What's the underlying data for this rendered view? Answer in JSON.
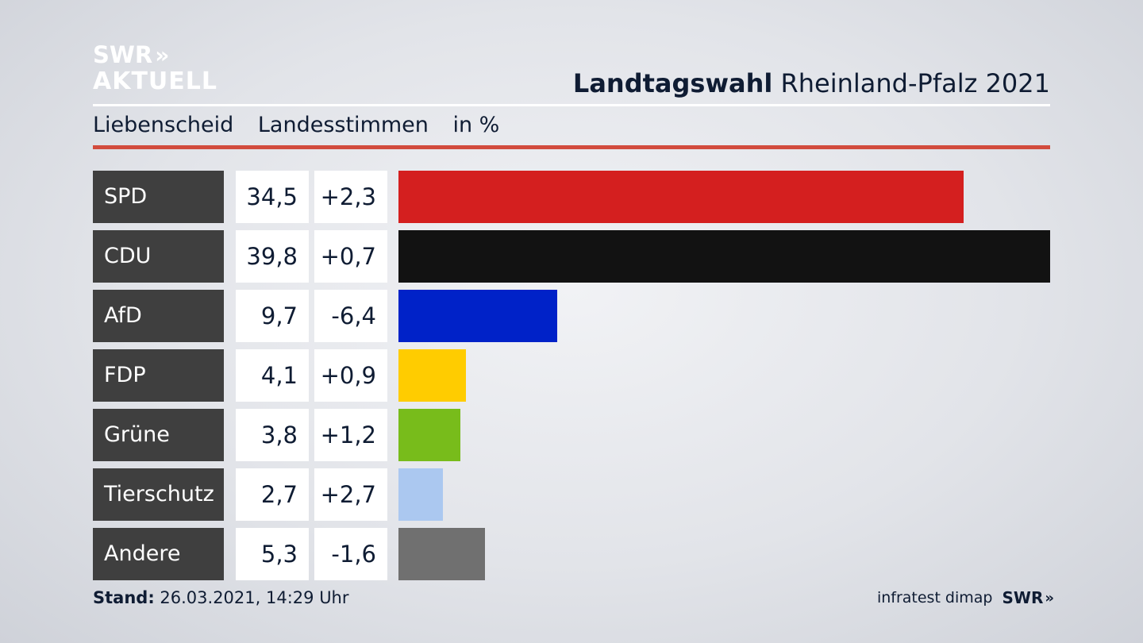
{
  "logo": {
    "line1": "SWR",
    "line2": "AKTUELL",
    "chevrons": "»"
  },
  "header": {
    "title_bold": "Landtagswahl",
    "title_rest": "Rheinland-Pfalz 2021",
    "sub_location": "Liebenscheid",
    "sub_type": "Landesstimmen",
    "sub_unit": "in %"
  },
  "colors": {
    "SPD": "#d41f1f",
    "CDU": "#121212",
    "AfD": "#0022c8",
    "FDP": "#ffcc00",
    "Grüne": "#78bc1b",
    "Tierschutz": "#abc8f0",
    "Andere": "#707070",
    "accent_red": "#d24b3d"
  },
  "chart_data": {
    "type": "bar",
    "orientation": "horizontal",
    "categories": [
      "SPD",
      "CDU",
      "AfD",
      "FDP",
      "Grüne",
      "Tierschutz",
      "Andere"
    ],
    "values": [
      34.5,
      39.8,
      9.7,
      4.1,
      3.8,
      2.7,
      5.3
    ],
    "value_labels": [
      "34,5",
      "39,8",
      "9,7",
      "4,1",
      "3,8",
      "2,7",
      "5,3"
    ],
    "changes": [
      2.3,
      0.7,
      -6.4,
      0.9,
      1.2,
      2.7,
      -1.6
    ],
    "change_labels": [
      "+2,3",
      "+0,7",
      "-6,4",
      "+0,9",
      "+1,2",
      "+2,7",
      "-1,6"
    ],
    "xlim": [
      0,
      39.8
    ],
    "grid": false
  },
  "footer": {
    "stand_label": "Stand:",
    "stand_value": "26.03.2021, 14:29 Uhr",
    "source": "infratest dimap",
    "brand": "SWR",
    "brand_chevrons": "»"
  }
}
